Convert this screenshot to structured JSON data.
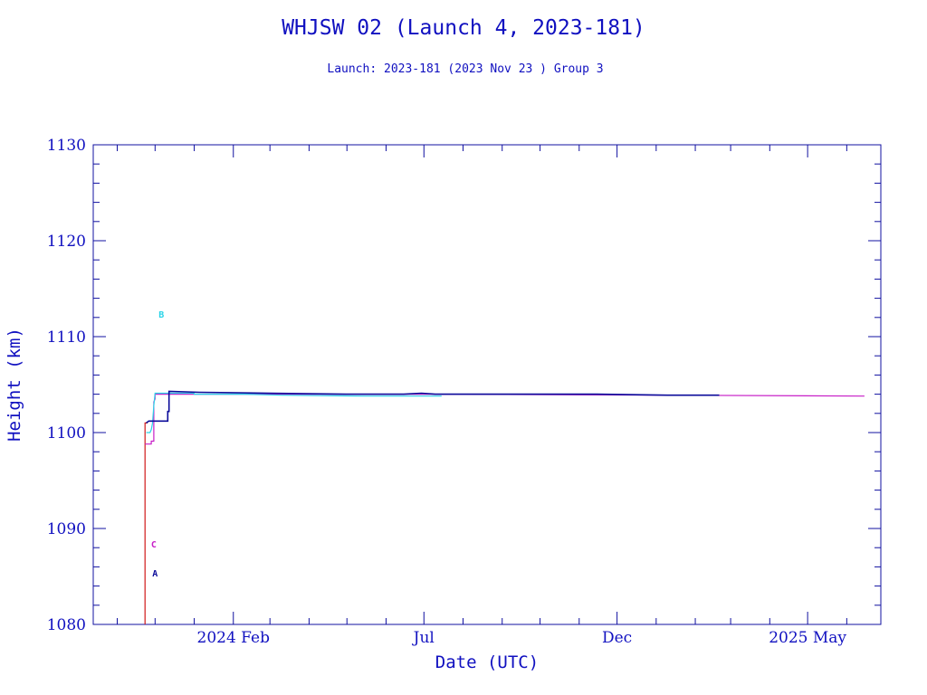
{
  "colors": {
    "axis": "#1010a0",
    "text": "#1010c0",
    "A": "#0b0b9a",
    "B": "#2ad4e8",
    "C": "#c71ec7",
    "D": "#d01818"
  },
  "chart_data": {
    "type": "line",
    "title": "WHJSW 02 (Launch 4, 2023-181)",
    "subtitle": "Launch: 2023-181  (2023 Nov 23 )  Group 3",
    "xlabel": "Date (UTC)",
    "ylabel": "Height (km)",
    "xlim": [
      "2023-10-13",
      "2025-06-28"
    ],
    "ylim": [
      1080,
      1130
    ],
    "y_ticks": [
      1080,
      1090,
      1100,
      1110,
      1120,
      1130
    ],
    "x_ticks": [
      {
        "date": "2024-02-01",
        "label": "2024 Feb"
      },
      {
        "date": "2024-07-01",
        "label": "Jul"
      },
      {
        "date": "2024-12-01",
        "label": "Dec"
      },
      {
        "date": "2025-05-01",
        "label": "2025 May"
      }
    ],
    "grid": false,
    "series": [
      {
        "name": "D",
        "color_key": "D",
        "points": [
          [
            "2023-11-23",
            1080
          ],
          [
            "2023-11-23",
            1101.0
          ],
          [
            "2023-11-25",
            1101.0
          ]
        ]
      },
      {
        "name": "C",
        "color_key": "C",
        "marker": {
          "label": "C",
          "date": "2023-11-30",
          "value": 1088.0
        },
        "points": [
          [
            "2023-11-23",
            1098.8
          ],
          [
            "2023-11-28",
            1098.8
          ],
          [
            "2023-11-28",
            1099.1
          ],
          [
            "2023-11-30",
            1099.1
          ],
          [
            "2023-11-30",
            1103.2
          ],
          [
            "2023-12-01",
            1103.5
          ],
          [
            "2023-12-01",
            1104.0
          ],
          [
            "2024-07-25",
            1104.0
          ],
          [
            "2025-06-15",
            1103.8
          ]
        ]
      },
      {
        "name": "B",
        "color_key": "B",
        "marker": {
          "label": "B",
          "date": "2023-12-06",
          "value": 1112.0
        },
        "points": [
          [
            "2023-11-24",
            1100.0
          ],
          [
            "2023-11-27",
            1100.0
          ],
          [
            "2023-11-28",
            1100.3
          ],
          [
            "2023-11-29",
            1101.0
          ],
          [
            "2023-11-30",
            1102.8
          ],
          [
            "2023-12-01",
            1104.1
          ],
          [
            "2024-01-01",
            1104.1
          ],
          [
            "2024-01-01",
            1104.0
          ],
          [
            "2024-02-10",
            1104.0
          ],
          [
            "2024-03-10",
            1103.9
          ],
          [
            "2024-05-15",
            1103.8
          ],
          [
            "2024-07-15",
            1103.8
          ]
        ]
      },
      {
        "name": "A",
        "color_key": "A",
        "marker": {
          "label": "A",
          "date": "2023-12-01",
          "value": 1085.0
        },
        "points": [
          [
            "2023-11-24",
            1101.0
          ],
          [
            "2023-11-26",
            1101.2
          ],
          [
            "2023-12-11",
            1101.2
          ],
          [
            "2023-12-11",
            1102.2
          ],
          [
            "2023-12-12",
            1102.2
          ],
          [
            "2023-12-12",
            1104.3
          ],
          [
            "2024-01-05",
            1104.2
          ],
          [
            "2024-03-01",
            1104.1
          ],
          [
            "2024-05-01",
            1104.0
          ],
          [
            "2024-06-15",
            1104.0
          ],
          [
            "2024-06-29",
            1104.1
          ],
          [
            "2024-07-10",
            1104.0
          ],
          [
            "2024-11-15",
            1104.0
          ],
          [
            "2025-01-10",
            1103.9
          ],
          [
            "2025-02-20",
            1103.9
          ]
        ]
      }
    ]
  }
}
